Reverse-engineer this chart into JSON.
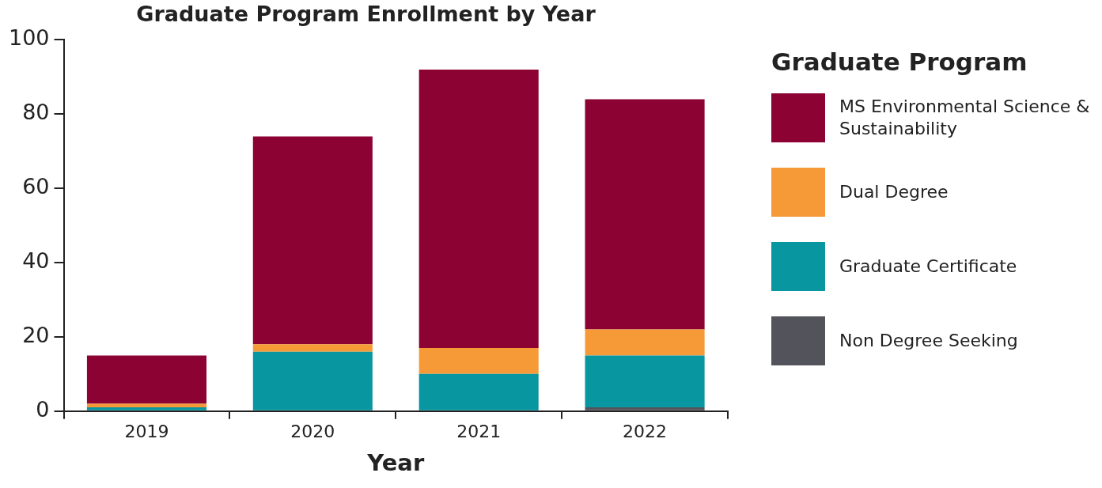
{
  "chart_data": {
    "type": "bar",
    "title": "Graduate Program Enrollment by Year",
    "xlabel": "Year",
    "legend_title": "Graduate Program",
    "categories": [
      "2019",
      "2020",
      "2021",
      "2022"
    ],
    "stacked": true,
    "series": [
      {
        "name": "Non Degree Seeking",
        "color": "#53535b",
        "values": [
          0,
          0,
          0,
          1
        ]
      },
      {
        "name": "Graduate Certificate",
        "color": "#0896a0",
        "values": [
          1,
          16,
          10,
          14
        ]
      },
      {
        "name": "Dual Degree",
        "color": "#f59a36",
        "values": [
          1,
          2,
          7,
          7
        ]
      },
      {
        "name": "MS Environmental Science & Sustainability",
        "color": "#8c0233",
        "values": [
          13,
          56,
          75,
          62
        ]
      }
    ],
    "ylim": [
      0,
      100
    ],
    "yticks": [
      0,
      20,
      40,
      60,
      80,
      100
    ],
    "grid": false,
    "legend": "right"
  }
}
